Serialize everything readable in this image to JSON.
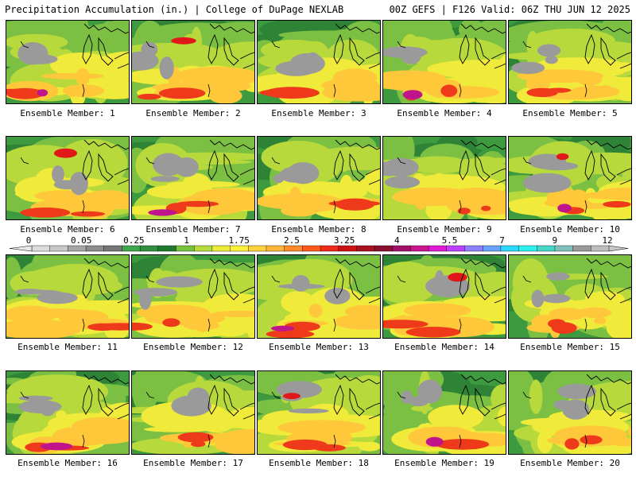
{
  "header": {
    "left": "Precipitation Accumulation (in.) | College of DuPage NEXLAB",
    "right": "00Z GEFS | F126 Valid: 06Z THU JUN 12 2025"
  },
  "panels": [
    {
      "member": "1",
      "caption": "Ensemble Member: 1"
    },
    {
      "member": "2",
      "caption": "Ensemble Member: 2"
    },
    {
      "member": "3",
      "caption": "Ensemble Member: 3"
    },
    {
      "member": "4",
      "caption": "Ensemble Member: 4"
    },
    {
      "member": "5",
      "caption": "Ensemble Member: 5"
    },
    {
      "member": "6",
      "caption": "Ensemble Member: 6"
    },
    {
      "member": "7",
      "caption": "Ensemble Member: 7"
    },
    {
      "member": "8",
      "caption": "Ensemble Member: 8"
    },
    {
      "member": "9",
      "caption": "Ensemble Member: 9"
    },
    {
      "member": "10",
      "caption": "Ensemble Member: 10"
    },
    {
      "member": "11",
      "caption": "Ensemble Member: 11"
    },
    {
      "member": "12",
      "caption": "Ensemble Member: 12"
    },
    {
      "member": "13",
      "caption": "Ensemble Member: 13"
    },
    {
      "member": "14",
      "caption": "Ensemble Member: 14"
    },
    {
      "member": "15",
      "caption": "Ensemble Member: 15"
    },
    {
      "member": "16",
      "caption": "Ensemble Member: 16"
    },
    {
      "member": "17",
      "caption": "Ensemble Member: 17"
    },
    {
      "member": "18",
      "caption": "Ensemble Member: 18"
    },
    {
      "member": "19",
      "caption": "Ensemble Member: 19"
    },
    {
      "member": "20",
      "caption": "Ensemble Member: 20"
    }
  ],
  "colorbar": {
    "labels": [
      "0",
      "0.05",
      "0.25",
      "1",
      "1.75",
      "2.5",
      "3.25",
      "4",
      "5.5",
      "7",
      "9",
      "12"
    ],
    "colors": [
      "#dcdcdc",
      "#c8c8c8",
      "#a6a6a6",
      "#8c8c8c",
      "#767676",
      "#3fa54f",
      "#2f8f3f",
      "#1f7a2f",
      "#79c23d",
      "#b7db3b",
      "#ebeb3a",
      "#fff03a",
      "#ffd23c",
      "#ffb43a",
      "#ff8a2a",
      "#ff5a1a",
      "#ee2a1a",
      "#cc1111",
      "#a80f1f",
      "#8a1030",
      "#a0106a",
      "#c8148e",
      "#e01ad0",
      "#bf3fff",
      "#8f7fff",
      "#6aa2ff",
      "#2ad8ff",
      "#2cf0f0",
      "#47d7c9",
      "#7fc2bd",
      "#9a9a9a",
      "#bdbdbd"
    ]
  }
}
